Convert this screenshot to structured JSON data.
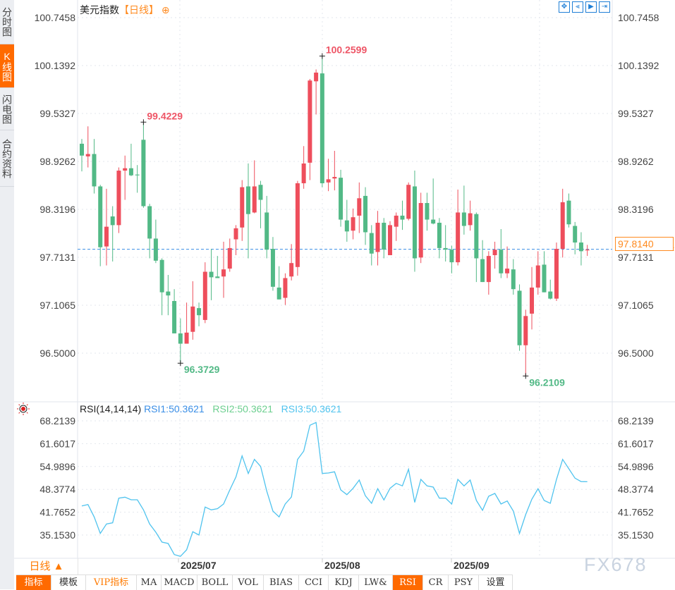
{
  "side_tabs": [
    "分时图",
    "K线图",
    "闪电图",
    "合约资料"
  ],
  "side_tab_active": 1,
  "header": {
    "instrument": "美元指数",
    "period": "【日线】",
    "add_icon": "plus-circle-icon"
  },
  "toolbar": [
    "move-icon",
    "zoom-start-icon",
    "play-icon",
    "jump-to-end-icon"
  ],
  "price_axis": [
    "100.7458",
    "100.1392",
    "99.5327",
    "98.9262",
    "98.3196",
    "97.7131",
    "97.1065",
    "96.5000"
  ],
  "current_price": "97.8140",
  "annotations": {
    "high1": "99.4229",
    "high2": "100.2599",
    "low1": "96.3729",
    "low2": "96.2109"
  },
  "rsi": {
    "legend_title": "RSI(14,14,14)",
    "rsi1": "RSI1:50.3621",
    "rsi2": "RSI2:50.3621",
    "rsi3": "RSI3:50.3621",
    "axis": [
      "68.2139",
      "61.6017",
      "54.9896",
      "48.3774",
      "41.7652",
      "35.1530"
    ]
  },
  "date_labels": [
    "2025/07",
    "2025/08",
    "2025/09"
  ],
  "period_button": "日线 ▲",
  "watermark": "FX678",
  "bottom_tabs": [
    "指标",
    "模板",
    "VIP指标",
    "MA",
    "MACD",
    "BOLL",
    "VOL",
    "BIAS",
    "CCI",
    "KDJ",
    "LW&",
    "RSI",
    "CR",
    "PSY",
    "设置"
  ],
  "bottom_tab_active": "RSI",
  "colors": {
    "up": "#ee4e5c",
    "down": "#52b986",
    "rsi_line": "#4fc3ee",
    "accent": "#ff6a00",
    "price_line": "#3a8ee6"
  },
  "chart_data": {
    "type": "candlestick",
    "ohlc_format": [
      "open",
      "high",
      "low",
      "close"
    ],
    "ylim": [
      96.0,
      100.7458
    ],
    "candles": [
      [
        99.15,
        99.21,
        98.8,
        99.0
      ],
      [
        98.99,
        99.37,
        98.85,
        99.02
      ],
      [
        99.02,
        99.21,
        98.52,
        98.61
      ],
      [
        98.61,
        98.63,
        97.6,
        97.84
      ],
      [
        97.85,
        98.58,
        97.61,
        98.1
      ],
      [
        98.23,
        98.36,
        97.66,
        98.12
      ],
      [
        98.12,
        98.85,
        98.02,
        98.81
      ],
      [
        98.81,
        99.0,
        98.44,
        98.84
      ],
      [
        98.84,
        99.15,
        98.74,
        98.75
      ],
      [
        98.76,
        98.88,
        98.53,
        98.75
      ],
      [
        99.2,
        99.42,
        98.34,
        98.36
      ],
      [
        98.36,
        98.39,
        97.7,
        97.95
      ],
      [
        97.95,
        98.19,
        97.64,
        97.67
      ],
      [
        97.68,
        97.7,
        96.98,
        97.27
      ],
      [
        97.28,
        97.49,
        96.98,
        97.23
      ],
      [
        97.16,
        97.31,
        96.75,
        96.75
      ],
      [
        96.75,
        96.94,
        96.37,
        96.62
      ],
      [
        96.62,
        97.14,
        96.62,
        96.76
      ],
      [
        96.77,
        97.41,
        96.67,
        97.09
      ],
      [
        97.07,
        97.14,
        96.84,
        96.98
      ],
      [
        96.92,
        97.65,
        96.88,
        97.53
      ],
      [
        97.53,
        97.82,
        97.17,
        97.46
      ],
      [
        97.47,
        97.73,
        97.45,
        97.45
      ],
      [
        97.47,
        97.91,
        97.2,
        97.56
      ],
      [
        97.57,
        97.95,
        97.53,
        97.83
      ],
      [
        97.94,
        98.12,
        97.74,
        98.08
      ],
      [
        98.09,
        98.69,
        97.92,
        98.6
      ],
      [
        98.61,
        98.9,
        97.7,
        98.26
      ],
      [
        98.28,
        98.94,
        98.27,
        98.61
      ],
      [
        98.63,
        98.68,
        98.08,
        98.44
      ],
      [
        98.28,
        98.49,
        97.7,
        97.81
      ],
      [
        97.82,
        97.97,
        97.29,
        97.34
      ],
      [
        97.33,
        97.6,
        97.18,
        97.18
      ],
      [
        97.2,
        97.51,
        97.11,
        97.45
      ],
      [
        97.47,
        97.88,
        97.42,
        97.64
      ],
      [
        97.59,
        98.68,
        97.48,
        98.65
      ],
      [
        98.65,
        99.12,
        98.58,
        98.9
      ],
      [
        98.91,
        99.97,
        98.69,
        99.95
      ],
      [
        99.94,
        100.09,
        99.52,
        100.05
      ],
      [
        100.04,
        100.26,
        98.6,
        98.65
      ],
      [
        98.66,
        98.96,
        98.55,
        98.7
      ],
      [
        98.71,
        99.06,
        98.56,
        98.73
      ],
      [
        98.72,
        98.82,
        98.1,
        98.19
      ],
      [
        98.18,
        98.44,
        97.91,
        98.04
      ],
      [
        98.05,
        98.33,
        97.94,
        98.22
      ],
      [
        98.24,
        98.66,
        98.02,
        98.46
      ],
      [
        98.49,
        98.6,
        97.87,
        98.03
      ],
      [
        98.02,
        98.12,
        97.61,
        97.76
      ],
      [
        97.78,
        98.3,
        97.61,
        98.15
      ],
      [
        98.15,
        98.21,
        97.7,
        97.81
      ],
      [
        97.74,
        98.17,
        97.74,
        98.12
      ],
      [
        98.1,
        98.28,
        97.92,
        98.24
      ],
      [
        98.24,
        98.43,
        98.06,
        98.19
      ],
      [
        98.2,
        98.66,
        98.18,
        98.63
      ],
      [
        98.61,
        98.81,
        97.53,
        97.7
      ],
      [
        97.71,
        98.53,
        97.64,
        98.4
      ],
      [
        98.4,
        98.53,
        98.05,
        98.19
      ],
      [
        98.19,
        98.71,
        98.13,
        98.14
      ],
      [
        98.15,
        98.21,
        97.7,
        97.83
      ],
      [
        97.83,
        98.12,
        97.66,
        97.81
      ],
      [
        97.81,
        97.86,
        97.51,
        97.65
      ],
      [
        97.65,
        98.57,
        97.61,
        98.28
      ],
      [
        98.28,
        98.62,
        98.0,
        98.11
      ],
      [
        98.12,
        98.43,
        98.05,
        98.27
      ],
      [
        98.26,
        98.28,
        97.4,
        97.7
      ],
      [
        97.69,
        97.93,
        97.4,
        97.4
      ],
      [
        97.4,
        97.79,
        97.24,
        97.73
      ],
      [
        97.74,
        97.91,
        97.57,
        97.81
      ],
      [
        97.81,
        98.07,
        97.45,
        97.51
      ],
      [
        97.51,
        97.85,
        97.45,
        97.57
      ],
      [
        97.56,
        97.69,
        97.24,
        97.31
      ],
      [
        97.29,
        97.37,
        96.53,
        96.6
      ],
      [
        96.6,
        97.05,
        96.21,
        96.97
      ],
      [
        97.0,
        97.59,
        96.8,
        97.33
      ],
      [
        97.33,
        97.79,
        97.24,
        97.61
      ],
      [
        97.62,
        97.79,
        97.27,
        97.27
      ],
      [
        97.28,
        97.43,
        97.18,
        97.19
      ],
      [
        97.19,
        97.9,
        97.16,
        97.82
      ],
      [
        97.82,
        98.58,
        97.71,
        98.41
      ],
      [
        98.43,
        98.52,
        98.09,
        98.13
      ],
      [
        98.11,
        98.16,
        97.75,
        97.9
      ],
      [
        97.9,
        98.03,
        97.61,
        97.79
      ],
      [
        97.8,
        97.87,
        97.73,
        97.81
      ]
    ],
    "rsi_ylim": [
      35.153,
      68.2139
    ],
    "rsi_values": [
      43.28,
      43.69,
      40.05,
      35.22,
      37.99,
      38.32,
      45.55,
      45.84,
      45.07,
      45.07,
      42.12,
      37.99,
      35.57,
      32.68,
      32.27,
      29.02,
      28.48,
      30.41,
      35.72,
      34.75,
      42.95,
      42.12,
      42.45,
      43.84,
      47.97,
      51.75,
      57.95,
      52.78,
      56.91,
      54.85,
      47.62,
      41.77,
      40.05,
      43.84,
      45.9,
      56.91,
      59.33,
      66.91,
      67.74,
      52.78,
      52.93,
      53.28,
      47.97,
      46.58,
      48.44,
      50.86,
      46.25,
      44.04,
      48.32,
      45.01,
      48.44,
      49.89,
      49.15,
      54.02,
      44.31,
      51.07,
      49.15,
      48.79,
      45.55,
      45.55,
      43.84,
      51.07,
      49.15,
      50.86,
      44.87,
      41.98,
      46.11,
      46.93,
      43.84,
      44.72,
      41.77,
      35.22,
      40.74,
      45.22,
      48.32,
      44.87,
      44.04,
      51.07,
      56.91,
      54.17,
      51.42,
      50.4,
      50.36
    ]
  }
}
